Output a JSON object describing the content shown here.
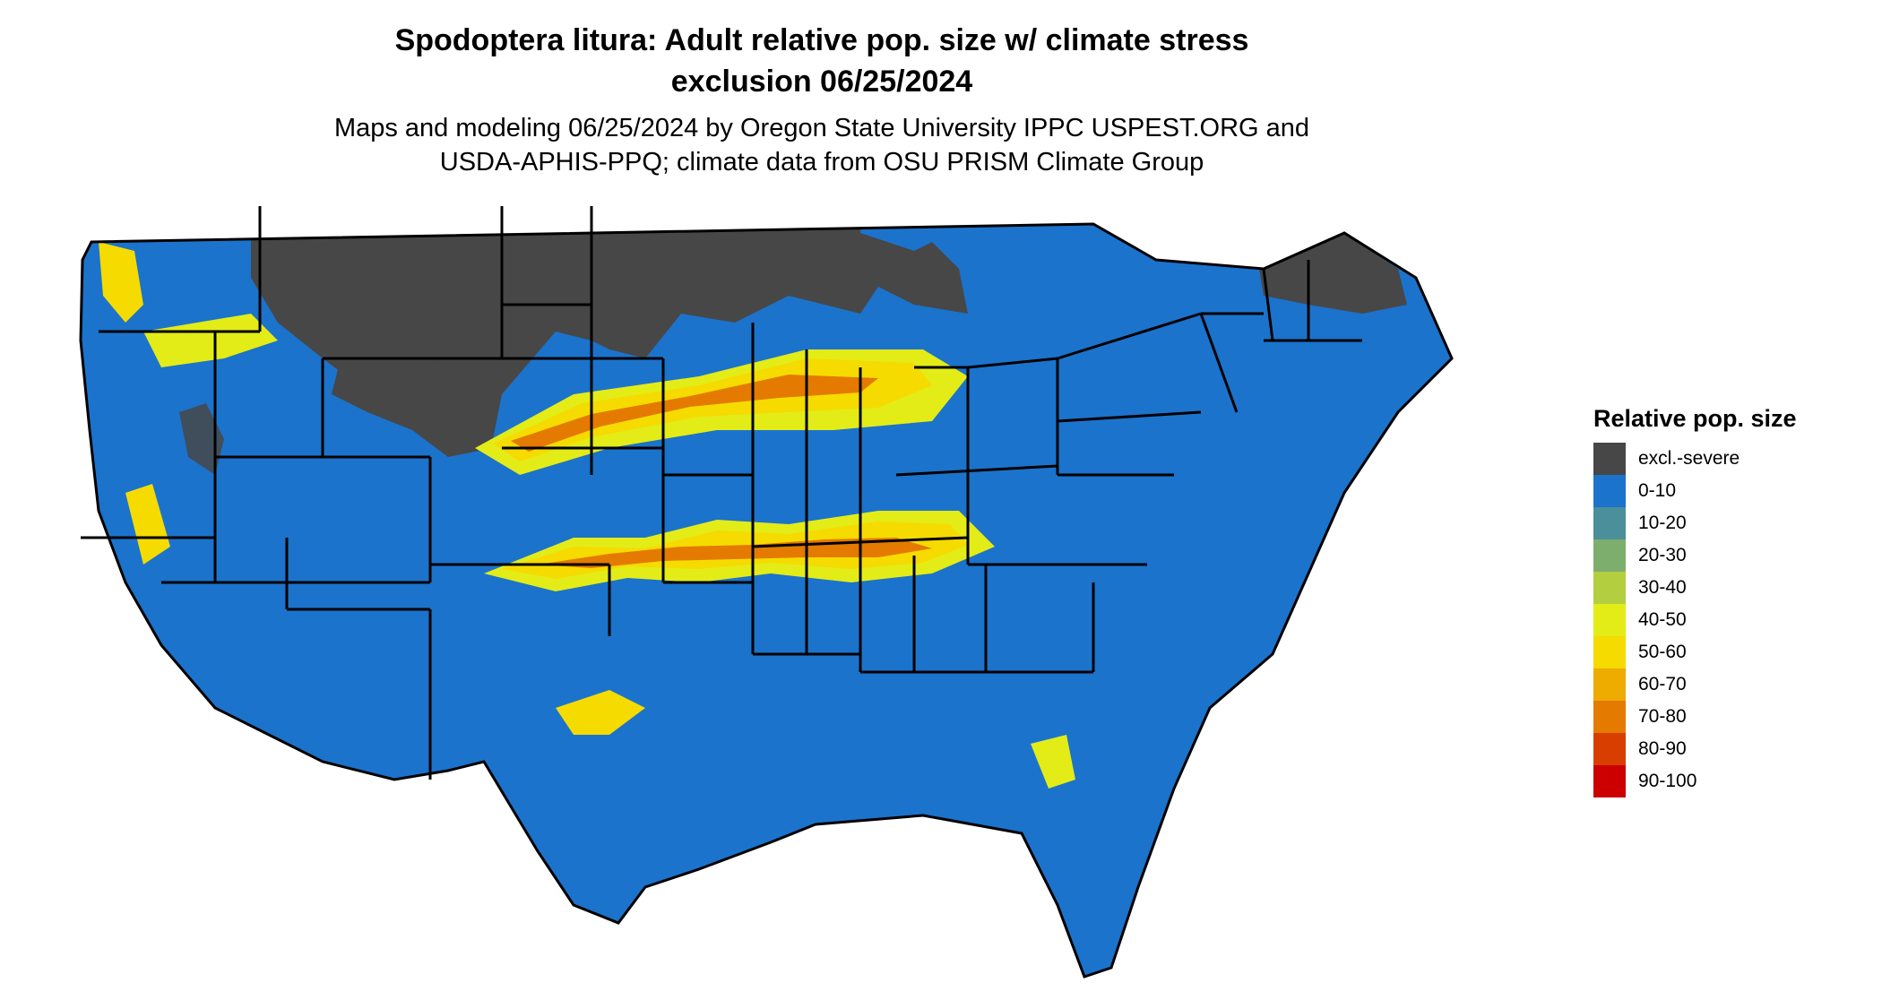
{
  "title": {
    "line1": "Spodoptera litura: Adult relative pop. size w/ climate stress",
    "line2": "exclusion 06/25/2024"
  },
  "subtitle": {
    "line1": "Maps and modeling 06/25/2024 by Oregon State University IPPC USPEST.ORG and",
    "line2": "USDA-APHIS-PPQ; climate data from OSU PRISM Climate Group"
  },
  "legend": {
    "title": "Relative pop. size",
    "items": [
      {
        "label": "excl.-severe",
        "color": "#474747"
      },
      {
        "label": "0-10",
        "color": "#1b73cc"
      },
      {
        "label": "10-20",
        "color": "#4a8f9a"
      },
      {
        "label": "20-30",
        "color": "#7eae6e"
      },
      {
        "label": "30-40",
        "color": "#b3cf3f"
      },
      {
        "label": "40-50",
        "color": "#e3ec17"
      },
      {
        "label": "50-60",
        "color": "#f5db00"
      },
      {
        "label": "60-70",
        "color": "#eeab00"
      },
      {
        "label": "70-80",
        "color": "#e47a00"
      },
      {
        "label": "80-90",
        "color": "#d83e00"
      },
      {
        "label": "90-100",
        "color": "#cc0000"
      }
    ]
  },
  "colors": {
    "excluded": "#474747",
    "low": "#1b73cc",
    "band_light": "#e3ec17",
    "band_mid": "#f5db00",
    "band_high": "#e47a00",
    "band_peak": "#cc0000",
    "borders": "#000000"
  }
}
